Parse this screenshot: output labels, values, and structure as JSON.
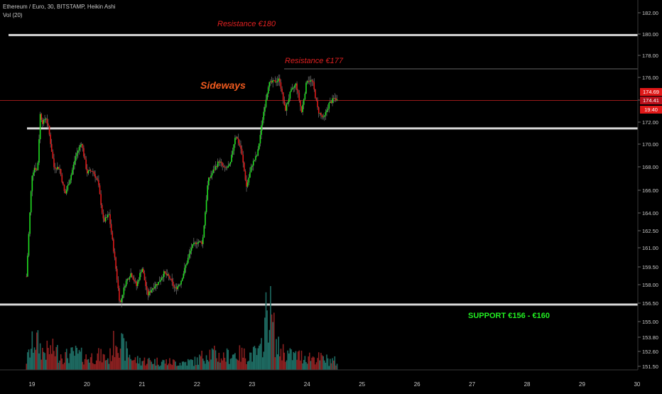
{
  "header": {
    "symbol_line": "Ethereum / Euro, 30, BITSTAMP, Heikin Ashi",
    "volume_line": "Vol (20)"
  },
  "price_labels": [
    "174.69",
    "174.41",
    "19:40"
  ],
  "colors": {
    "background": "#000000",
    "bull": "#22e022",
    "bear": "#e01a1a",
    "vol_bull": "#1e6b62",
    "vol_bear": "#8a2020",
    "level_line": "#d8d8d8",
    "resistance_text": "#e02020",
    "sideways_text": "#f05a1e",
    "support_text": "#22ee22"
  },
  "chart_data": {
    "type": "candlestick",
    "price_axis": {
      "ticks": [
        "182.00",
        "180.00",
        "178.00",
        "176.00",
        "174.00",
        "172.00",
        "170.00",
        "168.00",
        "166.00",
        "164.00",
        "162.50",
        "161.00",
        "159.50",
        "158.00",
        "156.50",
        "155.00",
        "153.80",
        "152.60",
        "151.50"
      ]
    },
    "time_axis": {
      "labels": [
        "19",
        "20",
        "21",
        "22",
        "23",
        "24",
        "25",
        "26",
        "27",
        "28",
        "29",
        "30"
      ]
    },
    "levels": [
      {
        "price": 180.0,
        "label": "Resistance €180",
        "style": "thick"
      },
      {
        "price": 177.1,
        "label": "Resistance €177",
        "style": "thin"
      },
      {
        "price": 174.4,
        "label": "",
        "style": "current"
      },
      {
        "price": 172.0,
        "label": "",
        "style": "thick"
      },
      {
        "price": 156.9,
        "label": "",
        "style": "thick"
      }
    ],
    "annotations": [
      "Sideways",
      "SUPPORT €156 - €160"
    ],
    "close_path": [
      [
        18.9,
        159.3
      ],
      [
        19.0,
        168.0
      ],
      [
        19.05,
        168.7
      ],
      [
        19.1,
        168.3
      ],
      [
        19.15,
        173.2
      ],
      [
        19.2,
        172.4
      ],
      [
        19.25,
        173.0
      ],
      [
        19.3,
        172.0
      ],
      [
        19.4,
        168.7
      ],
      [
        19.5,
        168.6
      ],
      [
        19.6,
        166.3
      ],
      [
        19.7,
        167.8
      ],
      [
        19.8,
        169.7
      ],
      [
        19.9,
        170.8
      ],
      [
        20.0,
        168.2
      ],
      [
        20.1,
        168.4
      ],
      [
        20.2,
        167.4
      ],
      [
        20.3,
        164.0
      ],
      [
        20.4,
        164.6
      ],
      [
        20.5,
        161.0
      ],
      [
        20.6,
        156.9
      ],
      [
        20.7,
        158.8
      ],
      [
        20.8,
        159.6
      ],
      [
        20.9,
        158.5
      ],
      [
        21.0,
        160.1
      ],
      [
        21.1,
        157.7
      ],
      [
        21.2,
        158.4
      ],
      [
        21.3,
        158.8
      ],
      [
        21.4,
        159.6
      ],
      [
        21.5,
        159.2
      ],
      [
        21.6,
        158.2
      ],
      [
        21.7,
        158.8
      ],
      [
        21.8,
        160.3
      ],
      [
        21.9,
        161.8
      ],
      [
        22.0,
        162.3
      ],
      [
        22.1,
        162.2
      ],
      [
        22.2,
        167.5
      ],
      [
        22.3,
        168.4
      ],
      [
        22.4,
        169.2
      ],
      [
        22.5,
        168.5
      ],
      [
        22.6,
        168.8
      ],
      [
        22.7,
        171.5
      ],
      [
        22.8,
        170.2
      ],
      [
        22.9,
        167.0
      ],
      [
        23.0,
        168.9
      ],
      [
        23.1,
        169.8
      ],
      [
        23.2,
        173.1
      ],
      [
        23.3,
        175.8
      ],
      [
        23.4,
        176.0
      ],
      [
        23.5,
        176.2
      ],
      [
        23.6,
        173.5
      ],
      [
        23.7,
        175.1
      ],
      [
        23.8,
        175.8
      ],
      [
        23.9,
        173.4
      ],
      [
        24.0,
        176.2
      ],
      [
        24.1,
        176.0
      ],
      [
        24.2,
        173.5
      ],
      [
        24.3,
        172.8
      ],
      [
        24.4,
        174.1
      ],
      [
        24.5,
        174.6
      ],
      [
        24.55,
        174.4
      ]
    ],
    "volume_profile": [
      [
        18.9,
        1.0
      ],
      [
        19.05,
        3.5
      ],
      [
        19.2,
        2.0
      ],
      [
        19.4,
        2.2
      ],
      [
        19.6,
        1.5
      ],
      [
        19.8,
        1.8
      ],
      [
        20.0,
        1.3
      ],
      [
        20.2,
        1.6
      ],
      [
        20.4,
        1.2
      ],
      [
        20.55,
        4.0
      ],
      [
        20.65,
        2.5
      ],
      [
        20.85,
        1.1
      ],
      [
        21.1,
        1.0
      ],
      [
        21.4,
        0.9
      ],
      [
        21.7,
        0.8
      ],
      [
        22.0,
        1.0
      ],
      [
        22.2,
        2.0
      ],
      [
        22.45,
        1.4
      ],
      [
        22.7,
        1.8
      ],
      [
        22.9,
        1.6
      ],
      [
        23.15,
        1.9
      ],
      [
        23.3,
        7.5
      ],
      [
        23.45,
        2.5
      ],
      [
        23.7,
        1.6
      ],
      [
        24.0,
        1.5
      ],
      [
        24.3,
        1.2
      ],
      [
        24.55,
        0.9
      ]
    ]
  }
}
